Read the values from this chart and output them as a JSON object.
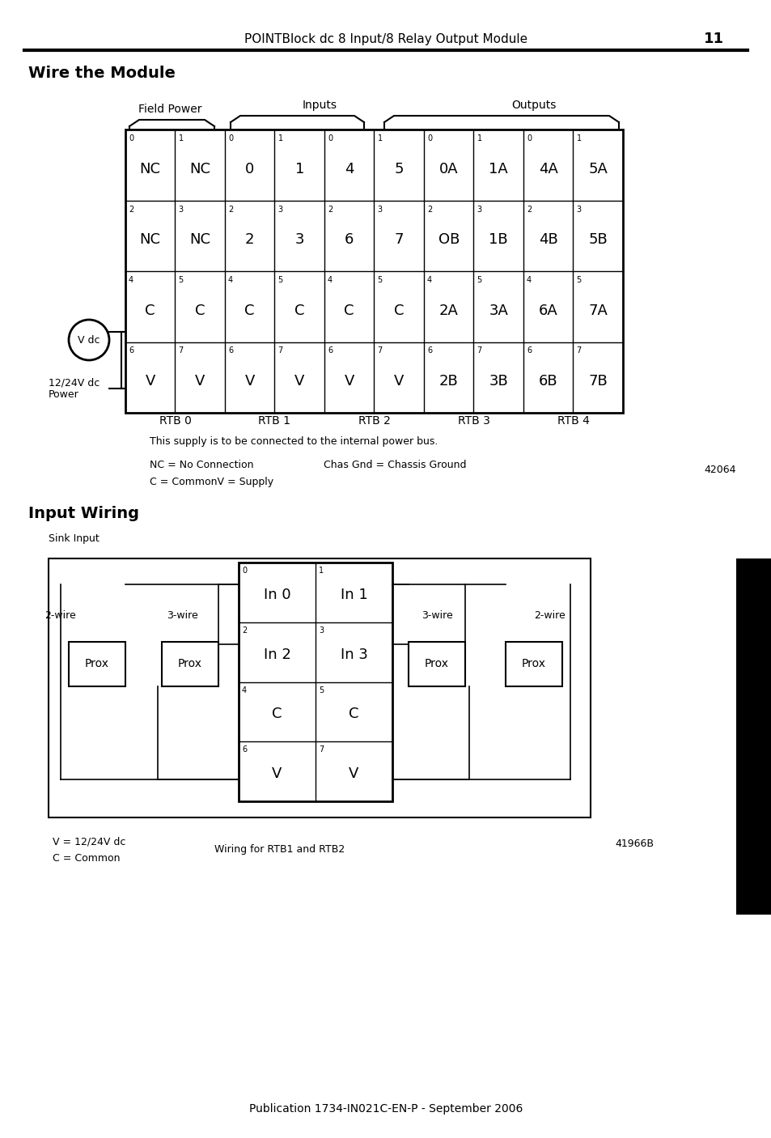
{
  "header_text": "POINTBlock dc 8 Input/8 Relay Output Module",
  "page_num": "11",
  "section1_title": "Wire the Module",
  "section2_title": "Input Wiring",
  "footer_text": "Publication 1734-IN021C-EN-P - September 2006",
  "bg_color": "#ffffff",
  "text_color": "#000000",
  "figure1_note": "This supply is to be connected to the internal power bus.",
  "figure1_legend1": "NC = No Connection",
  "figure1_legend2": "Chas Gnd = Chassis Ground",
  "figure1_legend3": "C = CommonV = Supply",
  "figure1_num": "42064",
  "field_power_label": "Field Power",
  "inputs_label": "Inputs",
  "outputs_label": "Outputs",
  "rtb_labels": [
    "RTB 0",
    "RTB 1",
    "RTB 2",
    "RTB 3",
    "RTB 4"
  ],
  "power_label": "12/24V dc\nPower",
  "vdc_label": "V dc",
  "figure2_sink": "Sink Input",
  "figure2_wire_left": "2-wire",
  "figure2_wire_mid": "3-wire",
  "figure2_wire_right3": "3-wire",
  "figure2_wire_right2": "2-wire",
  "figure2_legend1": "V = 12/24V dc",
  "figure2_legend2": "C = Common",
  "figure2_caption": "Wiring for RTB1 and RTB2",
  "figure2_num": "41966B",
  "table_cells": [
    [
      "0\nNC",
      "1\nNC",
      "0\n0",
      "1\n1",
      "0\n4",
      "1\n5",
      "0\n0A",
      "1\n1A",
      "0\n4A",
      "1\n5A"
    ],
    [
      "2\nNC",
      "3\nNC",
      "2\n2",
      "3\n3",
      "2\n6",
      "3\n7",
      "2\nOB",
      "3\n1B",
      "2\n4B",
      "3\n5B"
    ],
    [
      "4\nC",
      "5\nC",
      "4\nC",
      "5\nC",
      "4\nC",
      "5\nC",
      "4\n2A",
      "5\n3A",
      "4\n6A",
      "5\n7A"
    ],
    [
      "6\nV",
      "7\nV",
      "6\nV",
      "7\nV",
      "6\nV",
      "7\nV",
      "6\n2B",
      "7\n3B",
      "6\n6B",
      "7\n7B"
    ]
  ]
}
